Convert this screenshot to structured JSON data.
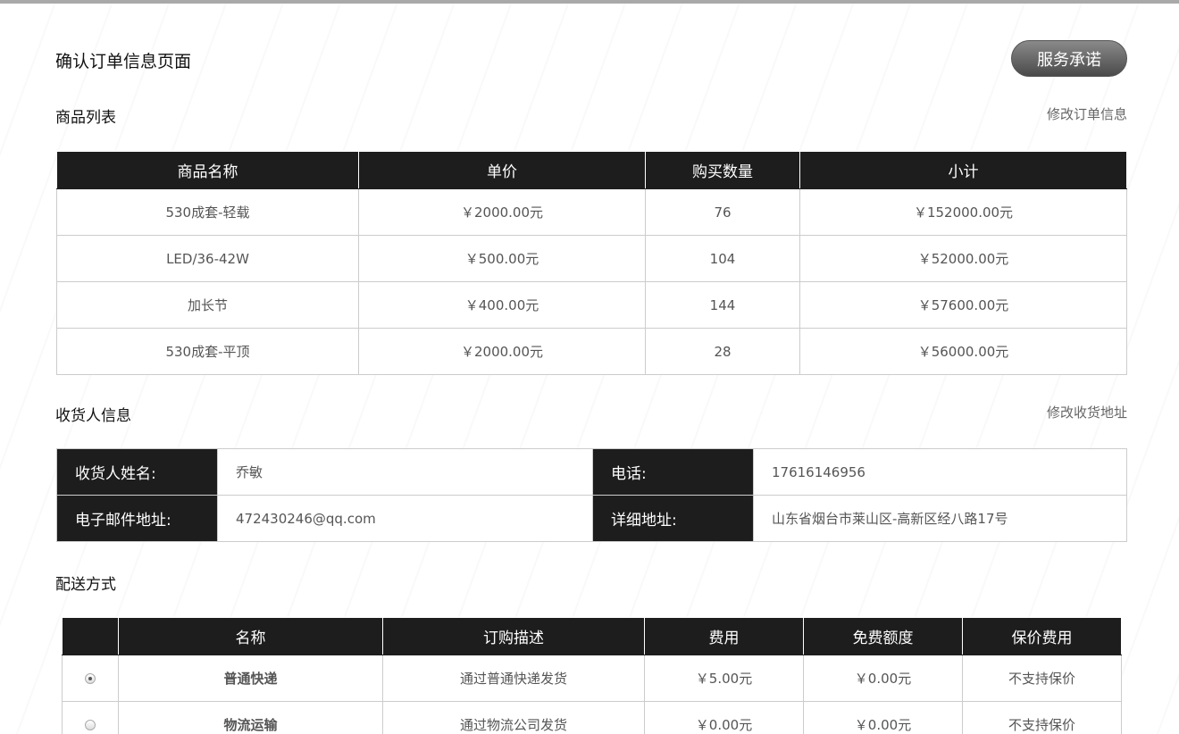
{
  "page": {
    "title": "确认订单信息页面",
    "service_button": "服务承诺"
  },
  "products": {
    "section": "商品列表",
    "edit_link": "修改订单信息",
    "columns": [
      "商品名称",
      "单价",
      "购买数量",
      "小计"
    ],
    "rows": [
      [
        "530成套-轻载",
        "￥2000.00元",
        "76",
        "￥152000.00元"
      ],
      [
        "LED/36-42W",
        "￥500.00元",
        "104",
        "￥52000.00元"
      ],
      [
        "加长节",
        "￥400.00元",
        "144",
        "￥57600.00元"
      ],
      [
        "530成套-平顶",
        "￥2000.00元",
        "28",
        "￥56000.00元"
      ]
    ]
  },
  "consignee": {
    "section": "收货人信息",
    "edit_link": "修改收货地址",
    "name_label": "收货人姓名:",
    "name": "乔敏",
    "phone_label": "电话:",
    "phone": "17616146956",
    "email_label": "电子邮件地址:",
    "email": "472430246@qq.com",
    "address_label": "详细地址:",
    "address": "山东省烟台市莱山区-高新区经八路17号"
  },
  "shipping": {
    "section": "配送方式",
    "columns": [
      "",
      "名称",
      "订购描述",
      "费用",
      "免费额度",
      "保价费用"
    ],
    "rows": [
      {
        "selected": true,
        "cells": [
          "普通快递",
          "通过普通快递发货",
          "￥5.00元",
          "￥0.00元",
          "不支持保价"
        ]
      },
      {
        "selected": false,
        "cells": [
          "物流运输",
          "通过物流公司发货",
          "￥0.00元",
          "￥0.00元",
          "不支持保价"
        ]
      }
    ]
  }
}
